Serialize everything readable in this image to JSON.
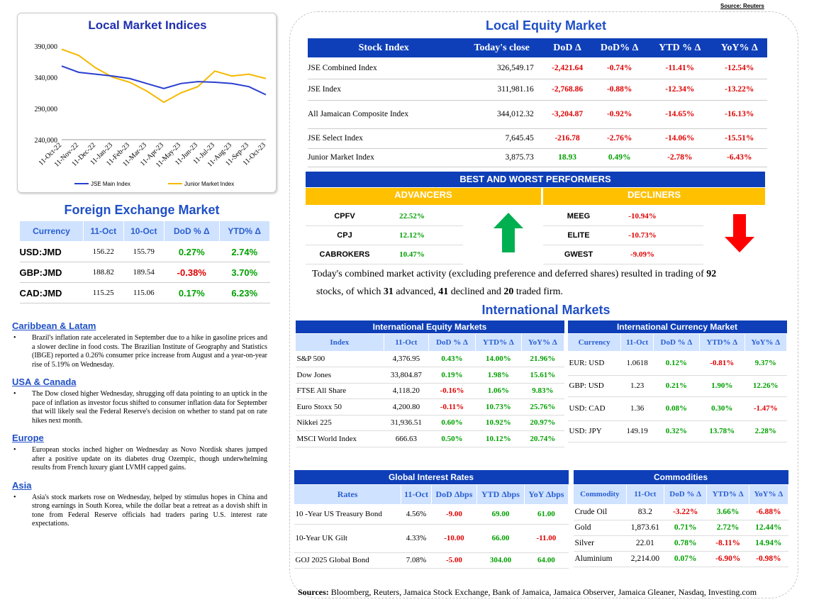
{
  "source_top": "Source: Reuters",
  "chart": {
    "title": "Local Market Indices",
    "legend": [
      "JSE Main Index",
      "Junior Market Index"
    ],
    "colors": {
      "main": "#2a3fd0",
      "junior": "#f5b800"
    }
  },
  "chart_data": {
    "type": "line",
    "title": "Local Market Indices",
    "x": [
      "11-Oct-22",
      "11-Nov-22",
      "11-Dec-22",
      "11-Jan-23",
      "11-Feb-23",
      "11-Mar-23",
      "11-Apr-23",
      "11-May-23",
      "11-Jun-23",
      "11-Jul-23",
      "11-Aug-23",
      "11-Sep-23",
      "11-Oct-23"
    ],
    "ylim": [
      240000,
      390000
    ],
    "yticks": [
      "240,000",
      "290,000",
      "340,000",
      "390,000"
    ],
    "series": [
      {
        "name": "JSE Main Index",
        "values": [
          358000,
          348000,
          345000,
          342000,
          338000,
          330000,
          322000,
          330000,
          333000,
          332000,
          330000,
          325000,
          312000
        ]
      },
      {
        "name": "Junior Market Index",
        "values": [
          385000,
          375000,
          355000,
          340000,
          332000,
          318000,
          300000,
          315000,
          325000,
          350000,
          342000,
          345000,
          338000
        ]
      }
    ]
  },
  "equity": {
    "title": "Local Equity Market",
    "headers": [
      "Stock Index",
      "Today's close",
      "DoD Δ",
      "DoD% Δ",
      "YTD % Δ",
      "YoY% Δ"
    ],
    "rows": [
      [
        "JSE Combined Index",
        "326,549.17",
        "-2,421.64",
        "-0.74%",
        "-11.41%",
        "-12.54%"
      ],
      [
        "JSE Index",
        "311,981.16",
        "-2,768.86",
        "-0.88%",
        "-12.34%",
        "-13.22%"
      ],
      [
        "All Jamaican Composite Index",
        "344,012.32",
        "-3,204.87",
        "-0.92%",
        "-14.65%",
        "-16.13%"
      ],
      [
        "JSE Select Index",
        "7,645.45",
        "-216.78",
        "-2.76%",
        "-14.06%",
        "-15.51%"
      ],
      [
        "Junior Market Index",
        "3,875.73",
        "18.93",
        "0.49%",
        "-2.78%",
        "-6.43%"
      ]
    ]
  },
  "performers": {
    "title": "BEST AND WORST PERFORMERS",
    "advancers_label": "ADVANCERS",
    "decliners_label": "DECLINERS",
    "advancers": [
      [
        "CPFV",
        "22.52%"
      ],
      [
        "CPJ",
        "12.12%"
      ],
      [
        "CABROKERS",
        "10.47%"
      ]
    ],
    "decliners": [
      [
        "MEEG",
        "-10.94%"
      ],
      [
        "ELITE",
        "-10.73%"
      ],
      [
        "GWEST",
        "-9.09%"
      ]
    ]
  },
  "activity": {
    "line1": "Today's combined market activity (excluding preference and deferred shares) resulted in trading of ",
    "total": "92",
    "line2a": "stocks, of which ",
    "advanced": "31",
    "line2b": " advanced, ",
    "declined": "41",
    "line2c": " declined and ",
    "firm": "20",
    "line2d": " traded firm."
  },
  "fx": {
    "title": "Foreign Exchange Market",
    "headers": [
      "Currency",
      "11-Oct",
      "10-Oct",
      "DoD % Δ",
      "YTD% Δ"
    ],
    "rows": [
      [
        "USD:JMD",
        "156.22",
        "155.79",
        "0.27%",
        "2.74%"
      ],
      [
        "GBP:JMD",
        "188.82",
        "189.54",
        "-0.38%",
        "3.70%"
      ],
      [
        "CAD:JMD",
        "115.25",
        "115.06",
        "0.17%",
        "6.23%"
      ]
    ]
  },
  "news": [
    {
      "head": "Caribbean & Latam",
      "text": "Brazil's inflation rate accelerated in September due to a hike in gasoline prices and a slower decline in food costs. The Brazilian Institute of Geography and Statistics (IBGE) reported a 0.26% consumer price increase from August and a year-on-year rise of 5.19% on Wednesday."
    },
    {
      "head": "USA & Canada",
      "text": "The Dow closed higher Wednesday, shrugging off data pointing to an uptick in the pace of inflation as investor focus shifted to consumer inflation data for September that will likely seal the Federal Reserve's decision on whether to stand pat on rate hikes next month."
    },
    {
      "head": "Europe",
      "text": "European stocks inched higher on Wednesday as Novo Nordisk shares jumped after a positive update on its diabetes drug Ozempic, though underwhelming results from French luxury giant LVMH capped gains."
    },
    {
      "head": "Asia",
      "text": "Asia's stock markets rose on Wednesday, helped by stimulus hopes in China and strong earnings in South Korea, while the dollar beat a retreat as a dovish shift in tone from Federal Reserve officials had traders paring U.S. interest rate expectations."
    }
  ],
  "intl": {
    "title": "International Markets",
    "equity_title": "International Equity Markets",
    "equity_headers": [
      "Index",
      "11-Oct",
      "DoD % Δ",
      "YTD% Δ",
      "YoY% Δ"
    ],
    "equity_rows": [
      [
        "S&P 500",
        "4,376.95",
        "0.43%",
        "14.00%",
        "21.96%"
      ],
      [
        "Dow Jones",
        "33,804.87",
        "0.19%",
        "1.98%",
        "15.61%"
      ],
      [
        "FTSE All Share",
        "4,118.20",
        "-0.16%",
        "1.06%",
        "9.83%"
      ],
      [
        "Euro Stoxx 50",
        "4,200.80",
        "-0.11%",
        "10.73%",
        "25.76%"
      ],
      [
        "Nikkei 225",
        "31,936.51",
        "0.60%",
        "10.92%",
        "20.97%"
      ],
      [
        "MSCI World Index",
        "666.63",
        "0.50%",
        "10.12%",
        "20.74%"
      ]
    ],
    "currency_title": "International Currency Market",
    "currency_headers": [
      "Currency",
      "11-Oct",
      "DoD % Δ",
      "YTD% Δ",
      "YoY% Δ"
    ],
    "currency_rows": [
      [
        "EUR: USD",
        "1.0618",
        "0.12%",
        "-0.81%",
        "9.37%"
      ],
      [
        "GBP: USD",
        "1.23",
        "0.21%",
        "1.90%",
        "12.26%"
      ],
      [
        "USD: CAD",
        "1.36",
        "0.08%",
        "0.30%",
        "-1.47%"
      ],
      [
        "USD: JPY",
        "149.19",
        "0.32%",
        "13.78%",
        "2.28%"
      ]
    ],
    "rates_title": "Global Interest Rates",
    "rates_headers": [
      "Rates",
      "11-Oct",
      "DoD Δbps",
      "YTD Δbps",
      "YoY Δbps"
    ],
    "rates_rows": [
      [
        "10 -Year US Treasury Bond",
        "4.56%",
        "-9.00",
        "69.00",
        "61.00"
      ],
      [
        "10-Year UK Gilt",
        "4.33%",
        "-10.00",
        "66.00",
        "-11.00"
      ],
      [
        "GOJ 2025 Global Bond",
        "7.08%",
        "-5.00",
        "304.00",
        "64.00"
      ]
    ],
    "commod_title": "Commodities",
    "commod_headers": [
      "Commodity",
      "11-Oct",
      "DoD % Δ",
      "YTD% Δ",
      "YoY% Δ"
    ],
    "commod_rows": [
      [
        "Crude Oil",
        "83.2",
        "-3.22%",
        "3.66%",
        "-6.88%"
      ],
      [
        "Gold",
        "1,873.61",
        "0.71%",
        "2.72%",
        "12.44%"
      ],
      [
        "Silver",
        "22.01",
        "0.78%",
        "-8.11%",
        "14.94%"
      ],
      [
        "Aluminium",
        "2,214.00",
        "0.07%",
        "-6.90%",
        "-0.98%"
      ]
    ]
  },
  "sources_bottom": {
    "label": "Sources:",
    "text": " Bloomberg, Reuters, Jamaica Stock Exchange, Bank of Jamaica, Jamaica Observer, Jamaica Gleaner, Nasdaq, Investing.com"
  }
}
